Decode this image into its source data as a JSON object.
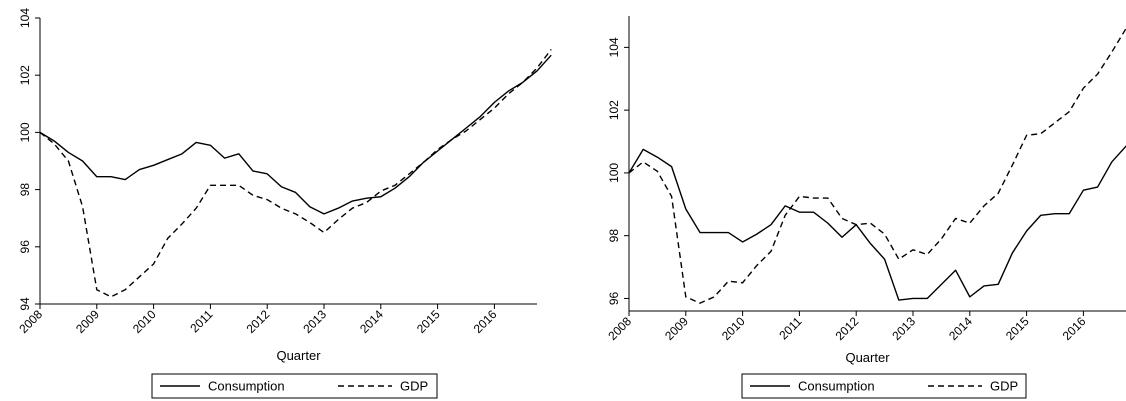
{
  "chart_data": [
    {
      "type": "line",
      "xlabel": "Quarter",
      "ylabel": "",
      "x_ticks": [
        "2008",
        "2009",
        "2010",
        "2011",
        "2012",
        "2013",
        "2014",
        "2015",
        "2016"
      ],
      "xlim": [
        2008,
        2016.75
      ],
      "ylim": [
        94,
        104
      ],
      "y_ticks": [
        94,
        96,
        98,
        100,
        102,
        104
      ],
      "legend_position": "bottom",
      "quarter_start": 2008,
      "series": [
        {
          "name": "Consumption",
          "style": "solid",
          "values": [
            100.0,
            99.7,
            99.3,
            99.0,
            98.45,
            98.45,
            98.35,
            98.7,
            98.85,
            99.05,
            99.25,
            99.65,
            99.55,
            99.1,
            99.25,
            98.65,
            98.55,
            98.1,
            97.9,
            97.4,
            97.15,
            97.35,
            97.6,
            97.7,
            97.75,
            98.05,
            98.45,
            98.95,
            99.35,
            99.75,
            100.15,
            100.55,
            101.05,
            101.45,
            101.75,
            102.15,
            102.7
          ]
        },
        {
          "name": "GDP",
          "style": "dashed",
          "values": [
            100.0,
            99.6,
            99.0,
            97.4,
            94.5,
            94.25,
            94.5,
            94.95,
            95.4,
            96.3,
            96.8,
            97.35,
            98.15,
            98.15,
            98.15,
            97.8,
            97.65,
            97.35,
            97.15,
            96.85,
            96.5,
            96.95,
            97.35,
            97.55,
            97.95,
            98.15,
            98.55,
            98.95,
            99.4,
            99.75,
            100.05,
            100.45,
            100.85,
            101.35,
            101.75,
            102.25,
            102.9
          ]
        }
      ]
    },
    {
      "type": "line",
      "xlabel": "Quarter",
      "ylabel": "",
      "x_ticks": [
        "2008",
        "2009",
        "2010",
        "2011",
        "2012",
        "2013",
        "2014",
        "2015",
        "2016"
      ],
      "xlim": [
        2008,
        2016.75
      ],
      "ylim": [
        95.6,
        105
      ],
      "y_ticks": [
        96,
        98,
        100,
        102,
        104
      ],
      "legend_position": "bottom",
      "quarter_start": 2008,
      "series": [
        {
          "name": "Consumption",
          "style": "solid",
          "values": [
            100.0,
            100.75,
            100.5,
            100.2,
            98.85,
            98.1,
            98.1,
            98.1,
            97.8,
            98.05,
            98.35,
            98.95,
            98.75,
            98.75,
            98.4,
            97.95,
            98.35,
            97.75,
            97.25,
            95.95,
            96.0,
            96.0,
            96.45,
            96.9,
            96.05,
            96.4,
            96.45,
            97.45,
            98.15,
            98.65,
            98.7,
            98.7,
            99.45,
            99.55,
            100.35,
            100.85,
            101.3
          ]
        },
        {
          "name": "GDP",
          "style": "dashed",
          "values": [
            100.0,
            100.35,
            100.05,
            99.25,
            96.05,
            95.85,
            96.05,
            96.55,
            96.5,
            97.05,
            97.5,
            98.65,
            99.25,
            99.2,
            99.2,
            98.55,
            98.35,
            98.4,
            98.05,
            97.25,
            97.55,
            97.4,
            97.9,
            98.55,
            98.4,
            98.95,
            99.35,
            100.25,
            101.2,
            101.25,
            101.6,
            101.95,
            102.7,
            103.15,
            103.85,
            104.6,
            105.2
          ]
        }
      ]
    }
  ]
}
